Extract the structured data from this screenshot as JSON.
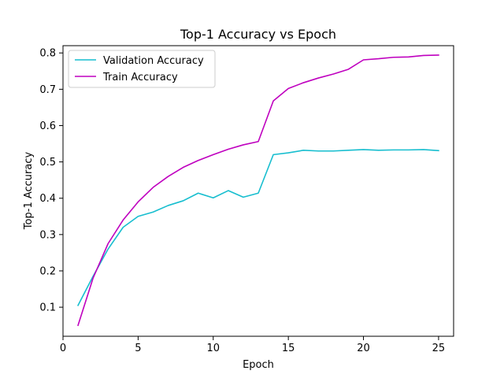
{
  "chart_data": {
    "type": "line",
    "title": "Top-1 Accuracy vs Epoch",
    "xlabel": "Epoch",
    "ylabel": "Top-1 Accuracy",
    "xlim": [
      0,
      26
    ],
    "ylim": [
      0.02,
      0.82
    ],
    "xticks": [
      0,
      5,
      10,
      15,
      20,
      25
    ],
    "yticks": [
      0.1,
      0.2,
      0.3,
      0.4,
      0.5,
      0.6,
      0.7,
      0.8
    ],
    "grid": false,
    "legend_position": "top-left",
    "x": [
      1,
      2,
      3,
      4,
      5,
      6,
      7,
      8,
      9,
      10,
      11,
      12,
      13,
      14,
      15,
      16,
      17,
      18,
      19,
      20,
      21,
      22,
      23,
      24,
      25
    ],
    "series": [
      {
        "name": "Validation Accuracy",
        "color": "#17becf",
        "values": [
          0.105,
          0.185,
          0.26,
          0.32,
          0.35,
          0.362,
          0.38,
          0.393,
          0.414,
          0.401,
          0.421,
          0.403,
          0.414,
          0.52,
          0.525,
          0.532,
          0.53,
          0.53,
          0.532,
          0.534,
          0.532,
          0.533,
          0.533,
          0.534,
          0.531
        ]
      },
      {
        "name": "Train Accuracy",
        "color": "#bf00bf",
        "values": [
          0.05,
          0.18,
          0.275,
          0.34,
          0.39,
          0.43,
          0.46,
          0.485,
          0.504,
          0.52,
          0.535,
          0.547,
          0.556,
          0.668,
          0.702,
          0.718,
          0.731,
          0.742,
          0.755,
          0.781,
          0.784,
          0.788,
          0.789,
          0.793,
          0.794
        ]
      }
    ]
  }
}
